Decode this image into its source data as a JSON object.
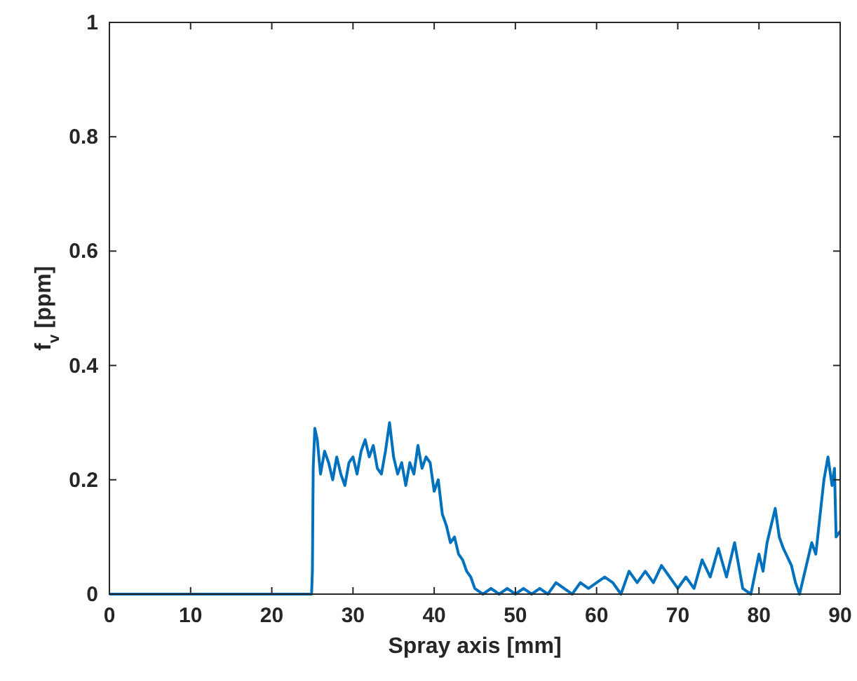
{
  "chart_data": {
    "type": "line",
    "xlabel": "Spray axis [mm]",
    "ylabel": "f$_{v}$ [ppm]",
    "xlim": [
      0,
      90
    ],
    "ylim": [
      0,
      1
    ],
    "xticks": [
      0,
      10,
      20,
      30,
      40,
      50,
      60,
      70,
      80,
      90
    ],
    "yticks": [
      0,
      0.2,
      0.4,
      0.6,
      0.8,
      1
    ],
    "grid": false,
    "marker": "none",
    "line_style": "solid",
    "series": [
      {
        "color": "#0072bd",
        "x": [
          0,
          24.9,
          25,
          25.1,
          25.3,
          25.6,
          26,
          26.5,
          27,
          27.5,
          28,
          28.5,
          29,
          29.5,
          30,
          30.5,
          31,
          31.5,
          32,
          32.5,
          33,
          33.5,
          34,
          34.5,
          35,
          35.5,
          36,
          36.5,
          37,
          37.5,
          38,
          38.5,
          39,
          39.5,
          40,
          40.5,
          41,
          41.5,
          42,
          42.5,
          43,
          43.5,
          44,
          44.5,
          45,
          46,
          47,
          48,
          49,
          50,
          51,
          52,
          53,
          54,
          55,
          56,
          57,
          58,
          59,
          60,
          61,
          62,
          63,
          64,
          65,
          66,
          67,
          68,
          69,
          70,
          71,
          72,
          73,
          74,
          75,
          76,
          77,
          78,
          79,
          80,
          80.5,
          81,
          82,
          82.5,
          83,
          84,
          84.5,
          85,
          86,
          86.5,
          87,
          88,
          88.5,
          89,
          89.3,
          89.5,
          90
        ],
        "values": [
          0,
          0,
          0.04,
          0.22,
          0.29,
          0.27,
          0.21,
          0.25,
          0.23,
          0.2,
          0.24,
          0.21,
          0.19,
          0.23,
          0.24,
          0.21,
          0.25,
          0.27,
          0.24,
          0.26,
          0.22,
          0.21,
          0.25,
          0.3,
          0.24,
          0.21,
          0.23,
          0.19,
          0.23,
          0.21,
          0.26,
          0.22,
          0.24,
          0.23,
          0.18,
          0.2,
          0.14,
          0.12,
          0.09,
          0.1,
          0.07,
          0.06,
          0.04,
          0.03,
          0.01,
          0,
          0.01,
          0,
          0.01,
          0,
          0.01,
          0,
          0.01,
          0,
          0.02,
          0.01,
          0,
          0.02,
          0.01,
          0.02,
          0.03,
          0.02,
          0,
          0.04,
          0.02,
          0.04,
          0.02,
          0.05,
          0.03,
          0.01,
          0.03,
          0.01,
          0.06,
          0.03,
          0.08,
          0.03,
          0.09,
          0.01,
          0,
          0.07,
          0.04,
          0.09,
          0.15,
          0.1,
          0.08,
          0.05,
          0.02,
          0,
          0.06,
          0.09,
          0.07,
          0.2,
          0.24,
          0.19,
          0.22,
          0.1,
          0.11
        ]
      }
    ]
  }
}
